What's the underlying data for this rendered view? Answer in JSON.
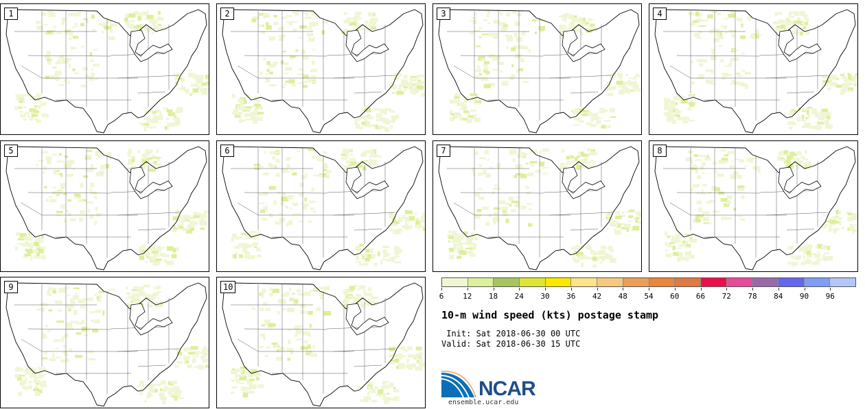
{
  "panels": [
    {
      "label": "1"
    },
    {
      "label": "2"
    },
    {
      "label": "3"
    },
    {
      "label": "4"
    },
    {
      "label": "5"
    },
    {
      "label": "6"
    },
    {
      "label": "7"
    },
    {
      "label": "8"
    },
    {
      "label": "9"
    },
    {
      "label": "10"
    }
  ],
  "colorbar": {
    "colors": [
      "#f0f6d4",
      "#dcef9c",
      "#a6c560",
      "#dde634",
      "#fbe800",
      "#fbe48a",
      "#f6c880",
      "#e9a055",
      "#e7873c",
      "#de7a42",
      "#e9104a",
      "#e64a98",
      "#9a6aa8",
      "#6268ef",
      "#7f9ef3",
      "#b2c7f5"
    ],
    "ticks": [
      "6",
      "12",
      "18",
      "24",
      "30",
      "36",
      "42",
      "48",
      "54",
      "60",
      "66",
      "72",
      "78",
      "84",
      "90",
      "96"
    ]
  },
  "title": "10-m wind speed (kts) postage stamp",
  "init_line": " Init: Sat 2018-06-30 00 UTC",
  "valid_line": "Valid: Sat 2018-06-30 15 UTC",
  "logo": {
    "text": "NCAR",
    "colors": {
      "blue": "#0b6eb8",
      "navy": "#1d4e8a"
    }
  },
  "site": "ensemble.ucar.edu"
}
